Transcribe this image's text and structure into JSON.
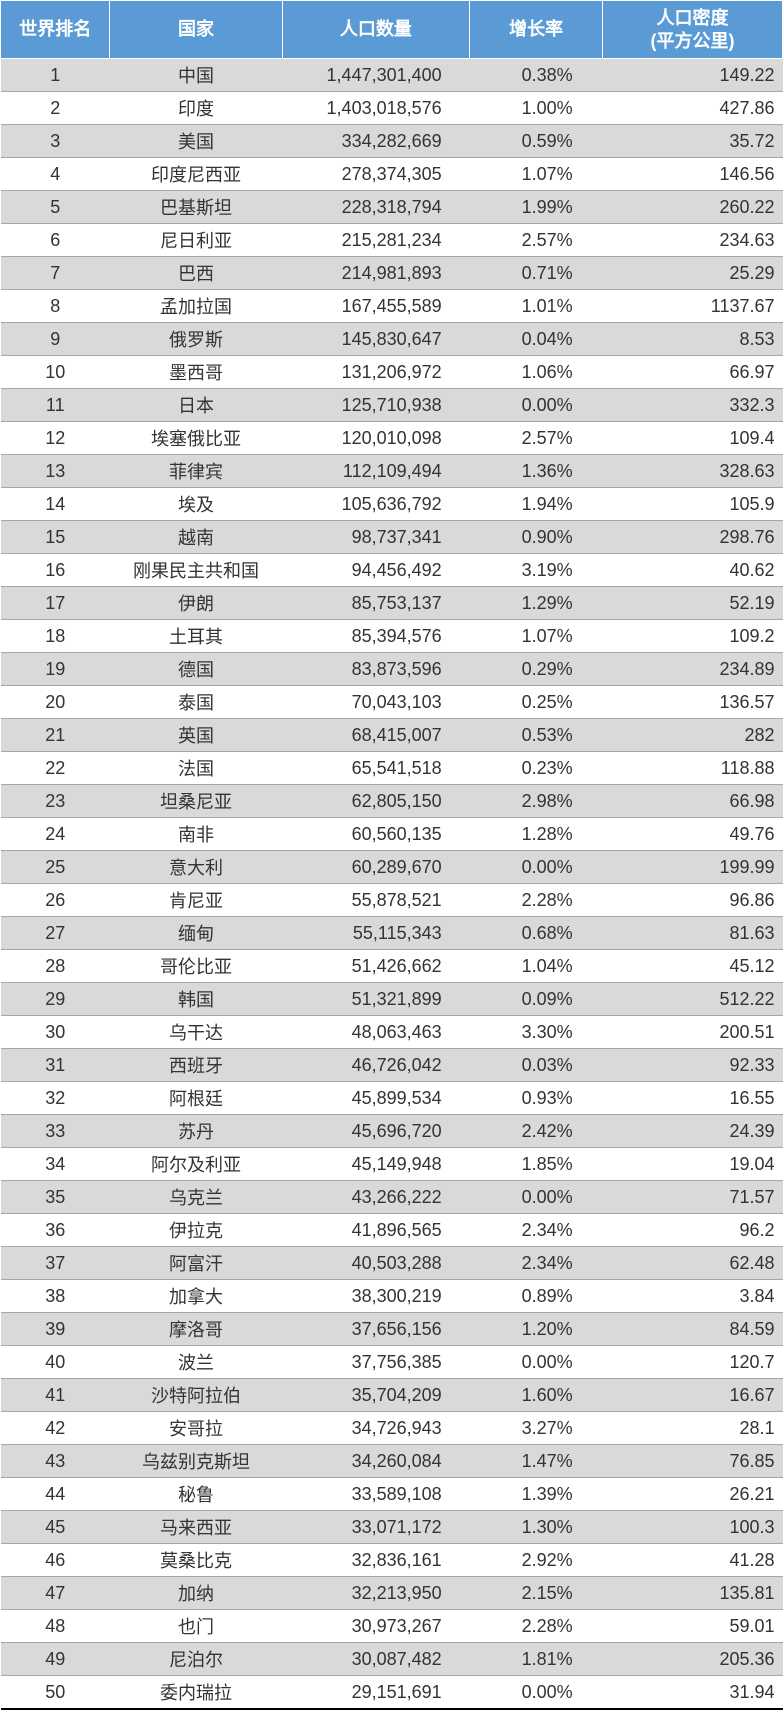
{
  "table": {
    "type": "table",
    "header_bg": "#5b9bd5",
    "header_fg": "#ffffff",
    "row_odd_bg": "#d9d9d9",
    "row_even_bg": "#ffffff",
    "border_color": "#a6a6a6",
    "font_size_pt": 14,
    "columns": [
      {
        "key": "rank",
        "label": "世界排名",
        "align": "center",
        "width_pct": 14
      },
      {
        "key": "country",
        "label": "国家",
        "align": "center",
        "width_pct": 22
      },
      {
        "key": "pop",
        "label": "人口数量",
        "align": "right",
        "width_pct": 24
      },
      {
        "key": "growth",
        "label": "增长率",
        "align": "right",
        "width_pct": 17
      },
      {
        "key": "density",
        "label": "人口密度\n(平方公里)",
        "align": "right",
        "width_pct": 23
      }
    ],
    "rows": [
      {
        "rank": "1",
        "country": "中国",
        "pop": "1,447,301,400",
        "growth": "0.38%",
        "density": "149.22"
      },
      {
        "rank": "2",
        "country": "印度",
        "pop": "1,403,018,576",
        "growth": "1.00%",
        "density": "427.86"
      },
      {
        "rank": "3",
        "country": "美国",
        "pop": "334,282,669",
        "growth": "0.59%",
        "density": "35.72"
      },
      {
        "rank": "4",
        "country": "印度尼西亚",
        "pop": "278,374,305",
        "growth": "1.07%",
        "density": "146.56"
      },
      {
        "rank": "5",
        "country": "巴基斯坦",
        "pop": "228,318,794",
        "growth": "1.99%",
        "density": "260.22"
      },
      {
        "rank": "6",
        "country": "尼日利亚",
        "pop": "215,281,234",
        "growth": "2.57%",
        "density": "234.63"
      },
      {
        "rank": "7",
        "country": "巴西",
        "pop": "214,981,893",
        "growth": "0.71%",
        "density": "25.29"
      },
      {
        "rank": "8",
        "country": "孟加拉国",
        "pop": "167,455,589",
        "growth": "1.01%",
        "density": "1137.67"
      },
      {
        "rank": "9",
        "country": "俄罗斯",
        "pop": "145,830,647",
        "growth": "0.04%",
        "density": "8.53"
      },
      {
        "rank": "10",
        "country": "墨西哥",
        "pop": "131,206,972",
        "growth": "1.06%",
        "density": "66.97"
      },
      {
        "rank": "11",
        "country": "日本",
        "pop": "125,710,938",
        "growth": "0.00%",
        "density": "332.3"
      },
      {
        "rank": "12",
        "country": "埃塞俄比亚",
        "pop": "120,010,098",
        "growth": "2.57%",
        "density": "109.4"
      },
      {
        "rank": "13",
        "country": "菲律宾",
        "pop": "112,109,494",
        "growth": "1.36%",
        "density": "328.63"
      },
      {
        "rank": "14",
        "country": "埃及",
        "pop": "105,636,792",
        "growth": "1.94%",
        "density": "105.9"
      },
      {
        "rank": "15",
        "country": "越南",
        "pop": "98,737,341",
        "growth": "0.90%",
        "density": "298.76"
      },
      {
        "rank": "16",
        "country": "刚果民主共和国",
        "pop": "94,456,492",
        "growth": "3.19%",
        "density": "40.62"
      },
      {
        "rank": "17",
        "country": "伊朗",
        "pop": "85,753,137",
        "growth": "1.29%",
        "density": "52.19"
      },
      {
        "rank": "18",
        "country": "土耳其",
        "pop": "85,394,576",
        "growth": "1.07%",
        "density": "109.2"
      },
      {
        "rank": "19",
        "country": "德国",
        "pop": "83,873,596",
        "growth": "0.29%",
        "density": "234.89"
      },
      {
        "rank": "20",
        "country": "泰国",
        "pop": "70,043,103",
        "growth": "0.25%",
        "density": "136.57"
      },
      {
        "rank": "21",
        "country": "英国",
        "pop": "68,415,007",
        "growth": "0.53%",
        "density": "282"
      },
      {
        "rank": "22",
        "country": "法国",
        "pop": "65,541,518",
        "growth": "0.23%",
        "density": "118.88"
      },
      {
        "rank": "23",
        "country": "坦桑尼亚",
        "pop": "62,805,150",
        "growth": "2.98%",
        "density": "66.98"
      },
      {
        "rank": "24",
        "country": "南非",
        "pop": "60,560,135",
        "growth": "1.28%",
        "density": "49.76"
      },
      {
        "rank": "25",
        "country": "意大利",
        "pop": "60,289,670",
        "growth": "0.00%",
        "density": "199.99"
      },
      {
        "rank": "26",
        "country": "肯尼亚",
        "pop": "55,878,521",
        "growth": "2.28%",
        "density": "96.86"
      },
      {
        "rank": "27",
        "country": "缅甸",
        "pop": "55,115,343",
        "growth": "0.68%",
        "density": "81.63"
      },
      {
        "rank": "28",
        "country": "哥伦比亚",
        "pop": "51,426,662",
        "growth": "1.04%",
        "density": "45.12"
      },
      {
        "rank": "29",
        "country": "韩国",
        "pop": "51,321,899",
        "growth": "0.09%",
        "density": "512.22"
      },
      {
        "rank": "30",
        "country": "乌干达",
        "pop": "48,063,463",
        "growth": "3.30%",
        "density": "200.51"
      },
      {
        "rank": "31",
        "country": "西班牙",
        "pop": "46,726,042",
        "growth": "0.03%",
        "density": "92.33"
      },
      {
        "rank": "32",
        "country": "阿根廷",
        "pop": "45,899,534",
        "growth": "0.93%",
        "density": "16.55"
      },
      {
        "rank": "33",
        "country": "苏丹",
        "pop": "45,696,720",
        "growth": "2.42%",
        "density": "24.39"
      },
      {
        "rank": "34",
        "country": "阿尔及利亚",
        "pop": "45,149,948",
        "growth": "1.85%",
        "density": "19.04"
      },
      {
        "rank": "35",
        "country": "乌克兰",
        "pop": "43,266,222",
        "growth": "0.00%",
        "density": "71.57"
      },
      {
        "rank": "36",
        "country": "伊拉克",
        "pop": "41,896,565",
        "growth": "2.34%",
        "density": "96.2"
      },
      {
        "rank": "37",
        "country": "阿富汗",
        "pop": "40,503,288",
        "growth": "2.34%",
        "density": "62.48"
      },
      {
        "rank": "38",
        "country": "加拿大",
        "pop": "38,300,219",
        "growth": "0.89%",
        "density": "3.84"
      },
      {
        "rank": "39",
        "country": "摩洛哥",
        "pop": "37,656,156",
        "growth": "1.20%",
        "density": "84.59"
      },
      {
        "rank": "40",
        "country": "波兰",
        "pop": "37,756,385",
        "growth": "0.00%",
        "density": "120.7"
      },
      {
        "rank": "41",
        "country": "沙特阿拉伯",
        "pop": "35,704,209",
        "growth": "1.60%",
        "density": "16.67"
      },
      {
        "rank": "42",
        "country": "安哥拉",
        "pop": "34,726,943",
        "growth": "3.27%",
        "density": "28.1"
      },
      {
        "rank": "43",
        "country": "乌兹别克斯坦",
        "pop": "34,260,084",
        "growth": "1.47%",
        "density": "76.85"
      },
      {
        "rank": "44",
        "country": "秘鲁",
        "pop": "33,589,108",
        "growth": "1.39%",
        "density": "26.21"
      },
      {
        "rank": "45",
        "country": "马来西亚",
        "pop": "33,071,172",
        "growth": "1.30%",
        "density": "100.3"
      },
      {
        "rank": "46",
        "country": "莫桑比克",
        "pop": "32,836,161",
        "growth": "2.92%",
        "density": "41.28"
      },
      {
        "rank": "47",
        "country": "加纳",
        "pop": "32,213,950",
        "growth": "2.15%",
        "density": "135.81"
      },
      {
        "rank": "48",
        "country": "也门",
        "pop": "30,973,267",
        "growth": "2.28%",
        "density": "59.01"
      },
      {
        "rank": "49",
        "country": "尼泊尔",
        "pop": "30,087,482",
        "growth": "1.81%",
        "density": "205.36"
      },
      {
        "rank": "50",
        "country": "委内瑞拉",
        "pop": "29,151,691",
        "growth": "0.00%",
        "density": "31.94"
      }
    ]
  }
}
